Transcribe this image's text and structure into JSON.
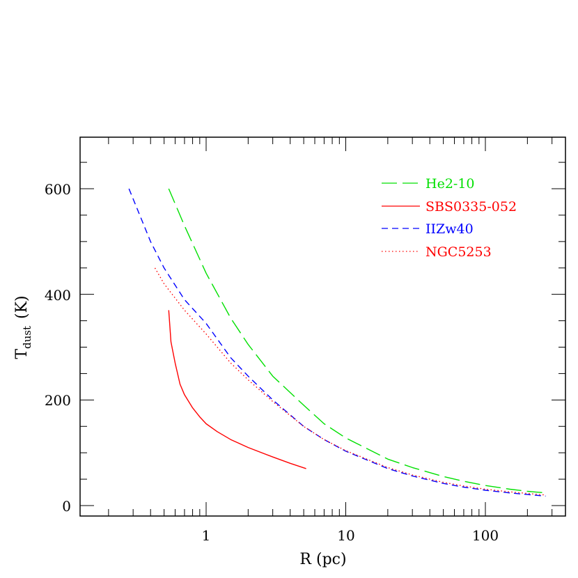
{
  "chart_data": {
    "type": "line",
    "title": "",
    "xlabel": "R (pc)",
    "ylabel": "T_dust (K)",
    "ylabel_main": "T",
    "ylabel_sub": "dust",
    "ylabel_unit": "(K)",
    "xscale": "log",
    "xlim": [
      0.125,
      375
    ],
    "ylim": [
      -20,
      700
    ],
    "x_ticks": [
      1,
      10,
      100
    ],
    "x_tick_labels": [
      "1",
      "10",
      "100"
    ],
    "y_ticks": [
      0,
      200,
      400,
      600
    ],
    "y_tick_labels": [
      "0",
      "200",
      "400",
      "600"
    ],
    "grid": false,
    "legend_position": "upper right",
    "series": [
      {
        "name": "He2-10",
        "color": "#00e000",
        "style": "long-dash",
        "x": [
          0.54,
          0.7,
          1,
          1.5,
          2,
          3,
          5,
          7,
          10,
          20,
          30,
          50,
          70,
          100,
          150,
          200,
          270
        ],
        "y": [
          600,
          530,
          440,
          355,
          305,
          245,
          190,
          155,
          128,
          88,
          72,
          55,
          46,
          38,
          31,
          27,
          24
        ]
      },
      {
        "name": "SBS0335-052",
        "color": "#ff0000",
        "style": "solid",
        "x": [
          0.54,
          0.56,
          0.6,
          0.65,
          0.7,
          0.8,
          0.9,
          1,
          1.2,
          1.5,
          2,
          3,
          4,
          5.2
        ],
        "y": [
          370,
          310,
          270,
          230,
          210,
          185,
          168,
          155,
          140,
          125,
          110,
          92,
          80,
          70
        ]
      },
      {
        "name": "IIZw40",
        "color": "#0000ff",
        "style": "dash",
        "x": [
          0.28,
          0.4,
          0.5,
          0.7,
          1,
          1.5,
          2,
          3,
          5,
          7,
          10,
          20,
          30,
          50,
          70,
          100,
          150,
          200,
          270
        ],
        "y": [
          600,
          500,
          450,
          390,
          345,
          280,
          245,
          200,
          150,
          125,
          103,
          70,
          56,
          42,
          35,
          29,
          24,
          21,
          18
        ]
      },
      {
        "name": "NGC5253",
        "color": "#ff0000",
        "style": "dotted",
        "x": [
          0.43,
          0.5,
          0.7,
          1,
          1.5,
          2,
          3,
          5,
          7,
          10,
          20,
          30,
          50,
          70,
          100,
          150,
          200,
          270
        ],
        "y": [
          450,
          420,
          370,
          325,
          270,
          238,
          197,
          150,
          125,
          104,
          72,
          58,
          44,
          37,
          31,
          26,
          23,
          20
        ]
      }
    ]
  },
  "legend": {
    "items": [
      {
        "label": "He2-10",
        "color": "#00e000"
      },
      {
        "label": "SBS0335-052",
        "color": "#ff0000"
      },
      {
        "label": "IIZw40",
        "color": "#0000ff"
      },
      {
        "label": "NGC5253",
        "color": "#ff0000"
      }
    ]
  }
}
